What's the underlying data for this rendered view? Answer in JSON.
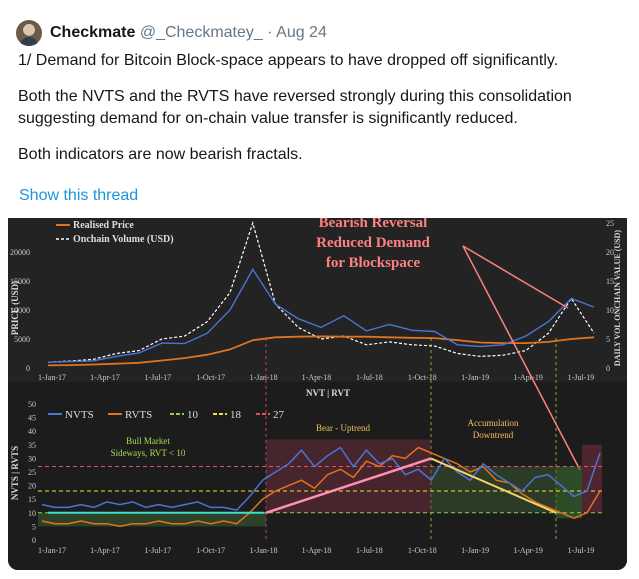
{
  "tweet": {
    "author_name": "Checkmate",
    "handle": "@_Checkmatey_",
    "separator": "·",
    "date": "Aug 24",
    "paragraphs": [
      "1/ Demand for Bitcoin Block-space appears to have dropped off significantly.",
      "Both the NVTS and the RVTS have reversed strongly during this consolidation suggesting demand for on-chain value transfer is significantly reduced.",
      "Both indicators are now bearish fractals."
    ],
    "thread_link": "Show this thread"
  },
  "colors": {
    "link": "#1b95e0",
    "chart_bg": "#1e1e1e",
    "nvts": "#4a74d6",
    "rvts": "#e0731e",
    "level_10": "#8fd14f",
    "level_18": "#f0e040",
    "level_27": "#e8506a",
    "annotation_red": "#ff8080",
    "annotation_text": "#f0c060",
    "bull_text": "#aadd55",
    "onchain_volume": "#ffffff",
    "realised_price": "#e0731e",
    "price": "#4a74d6"
  },
  "chart_data": [
    {
      "type": "line",
      "title": "",
      "annotation": "Bearish Reversal Reduced Demand for Blockspace",
      "annotation_lines": [
        "Bearish Reversal",
        "Reduced Demand",
        "for Blockspace"
      ],
      "ylabel": "PRICE (USD)",
      "y2label": "DAILY VOL ONCHAIN VALUE (USD)",
      "xlabel": "NVT | RVT",
      "legend": [
        "Realised Price",
        "Onchain Volume (USD)"
      ],
      "y_ticks": [
        "0",
        "5000",
        "10000",
        "15000",
        "20000"
      ],
      "y2_ticks": [
        "0",
        "5",
        "10",
        "15",
        "20",
        "25"
      ],
      "x_ticks": [
        "1-Jan-17",
        "1-Apr-17",
        "1-Jul-17",
        "1-Oct-17",
        "1-Jan-18",
        "1-Apr-18",
        "1-Jul-18",
        "1-Oct-18",
        "1-Jan-19",
        "1-Apr-19",
        "1-Jul-19"
      ],
      "ylim": [
        0,
        25000
      ],
      "series": [
        {
          "name": "Price",
          "values": [
            1000,
            1100,
            1250,
            2000,
            2600,
            4300,
            4200,
            6000,
            10000,
            17000,
            11000,
            8500,
            7000,
            9000,
            6400,
            7500,
            6500,
            6300,
            4000,
            3700,
            4000,
            5500,
            8000,
            12000,
            10500
          ]
        },
        {
          "name": "Realised Price",
          "values": [
            450,
            500,
            600,
            750,
            900,
            1300,
            1700,
            2300,
            3200,
            4800,
            5300,
            5400,
            5450,
            5400,
            5400,
            5300,
            5200,
            5150,
            4800,
            4400,
            4300,
            4300,
            4500,
            5000,
            5300
          ]
        },
        {
          "name": "Onchain Volume (USD)",
          "values": [
            1,
            1.2,
            1.5,
            2.5,
            3,
            5,
            5.5,
            8,
            13,
            25,
            11,
            7,
            5,
            5.5,
            4,
            4.5,
            4,
            3.8,
            2.5,
            2,
            2.2,
            3,
            6,
            12,
            6
          ]
        }
      ]
    },
    {
      "type": "line",
      "title": "",
      "ylabel": "NVTS | RVTS",
      "legend": [
        "NVTS",
        "RVTS",
        "10",
        "18",
        "27"
      ],
      "y_ticks": [
        "0",
        "5",
        "10",
        "15",
        "20",
        "25",
        "30",
        "35",
        "40",
        "45",
        "50"
      ],
      "x_ticks": [
        "1-Jan-17",
        "1-Apr-17",
        "1-Jul-17",
        "1-Oct-17",
        "1-Jan-18",
        "1-Apr-18",
        "1-Jul-18",
        "1-Oct-18",
        "1-Jan-19",
        "1-Apr-19",
        "1-Jul-19"
      ],
      "ylim": [
        0,
        50
      ],
      "annotations": [
        {
          "lines": [
            "Bull Market",
            "Sideways, RVT < 10"
          ]
        },
        {
          "lines": [
            "Bear - Uptrend"
          ]
        },
        {
          "lines": [
            "Accumulation",
            "Downtrend"
          ]
        }
      ],
      "levels": [
        10,
        18,
        27
      ],
      "series": [
        {
          "name": "NVTS",
          "values": [
            13,
            12,
            12,
            13,
            12,
            14,
            13,
            14,
            12,
            13,
            12,
            13,
            14,
            12,
            12,
            11,
            16,
            22,
            25,
            28,
            33,
            27,
            31,
            34,
            27,
            33,
            28,
            30,
            24,
            26,
            22,
            30,
            25,
            22,
            28,
            24,
            21,
            18,
            23,
            24,
            20,
            16,
            18,
            32
          ]
        },
        {
          "name": "RVTS",
          "values": [
            7,
            6,
            6,
            7,
            6,
            6,
            5,
            6,
            6,
            7,
            6,
            6,
            7,
            6,
            7,
            6,
            10,
            15,
            18,
            20,
            22,
            19,
            24,
            26,
            23,
            29,
            27,
            31,
            30,
            34,
            32,
            30,
            28,
            25,
            27,
            22,
            21,
            17,
            14,
            12,
            10,
            8,
            10,
            18
          ]
        }
      ]
    }
  ]
}
